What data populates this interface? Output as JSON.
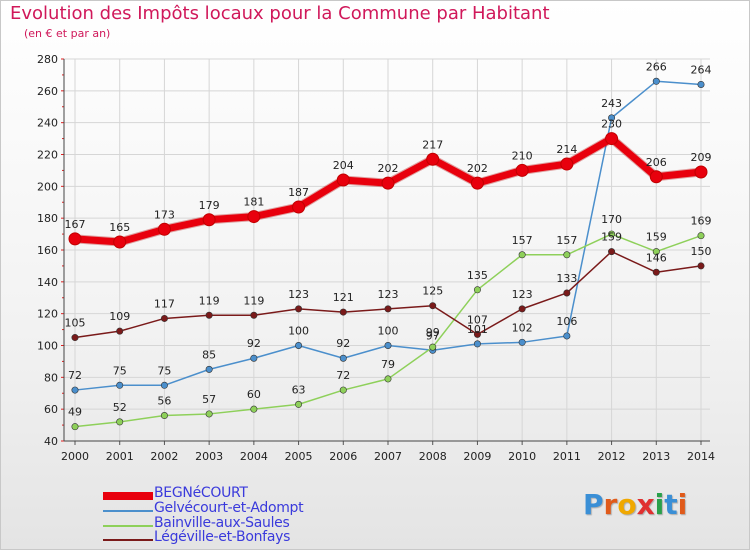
{
  "title": "Evolution des Impôts locaux pour la Commune par Habitant",
  "subtitle": "(en € et par an)",
  "logo": "Proxiti",
  "chart_data": {
    "type": "line",
    "title": "Evolution des Impôts locaux pour la Commune par Habitant",
    "subtitle": "(en € et par an)",
    "xlabel": "",
    "ylabel": "",
    "x": [
      "2000",
      "2001",
      "2002",
      "2003",
      "2004",
      "2005",
      "2006",
      "2007",
      "2008",
      "2009",
      "2010",
      "2011",
      "2012",
      "2013",
      "2014"
    ],
    "ylim": [
      40,
      280
    ],
    "yticks": [
      40,
      60,
      80,
      100,
      120,
      140,
      160,
      180,
      200,
      220,
      240,
      260,
      280
    ],
    "grid": true,
    "legend_position": "bottom-left",
    "series": [
      {
        "name": "BEGNéCOURT",
        "color": "#e8000d",
        "values": [
          167,
          165,
          173,
          179,
          181,
          187,
          204,
          202,
          217,
          202,
          210,
          214,
          230,
          206,
          209
        ]
      },
      {
        "name": "Gelvécourt-et-Adompt",
        "color": "#4b8fcc",
        "values": [
          72,
          75,
          75,
          85,
          92,
          100,
          92,
          100,
          97,
          101,
          102,
          106,
          243,
          266,
          264
        ]
      },
      {
        "name": "Bainville-aux-Saules",
        "color": "#8ed05a",
        "values": [
          49,
          52,
          56,
          57,
          60,
          63,
          72,
          79,
          99,
          135,
          157,
          157,
          170,
          159,
          169
        ]
      },
      {
        "name": "Légéville-et-Bonfays",
        "color": "#7a1a1a",
        "values": [
          105,
          109,
          117,
          119,
          119,
          123,
          121,
          123,
          125,
          107,
          123,
          133,
          159,
          146,
          150
        ]
      }
    ]
  }
}
